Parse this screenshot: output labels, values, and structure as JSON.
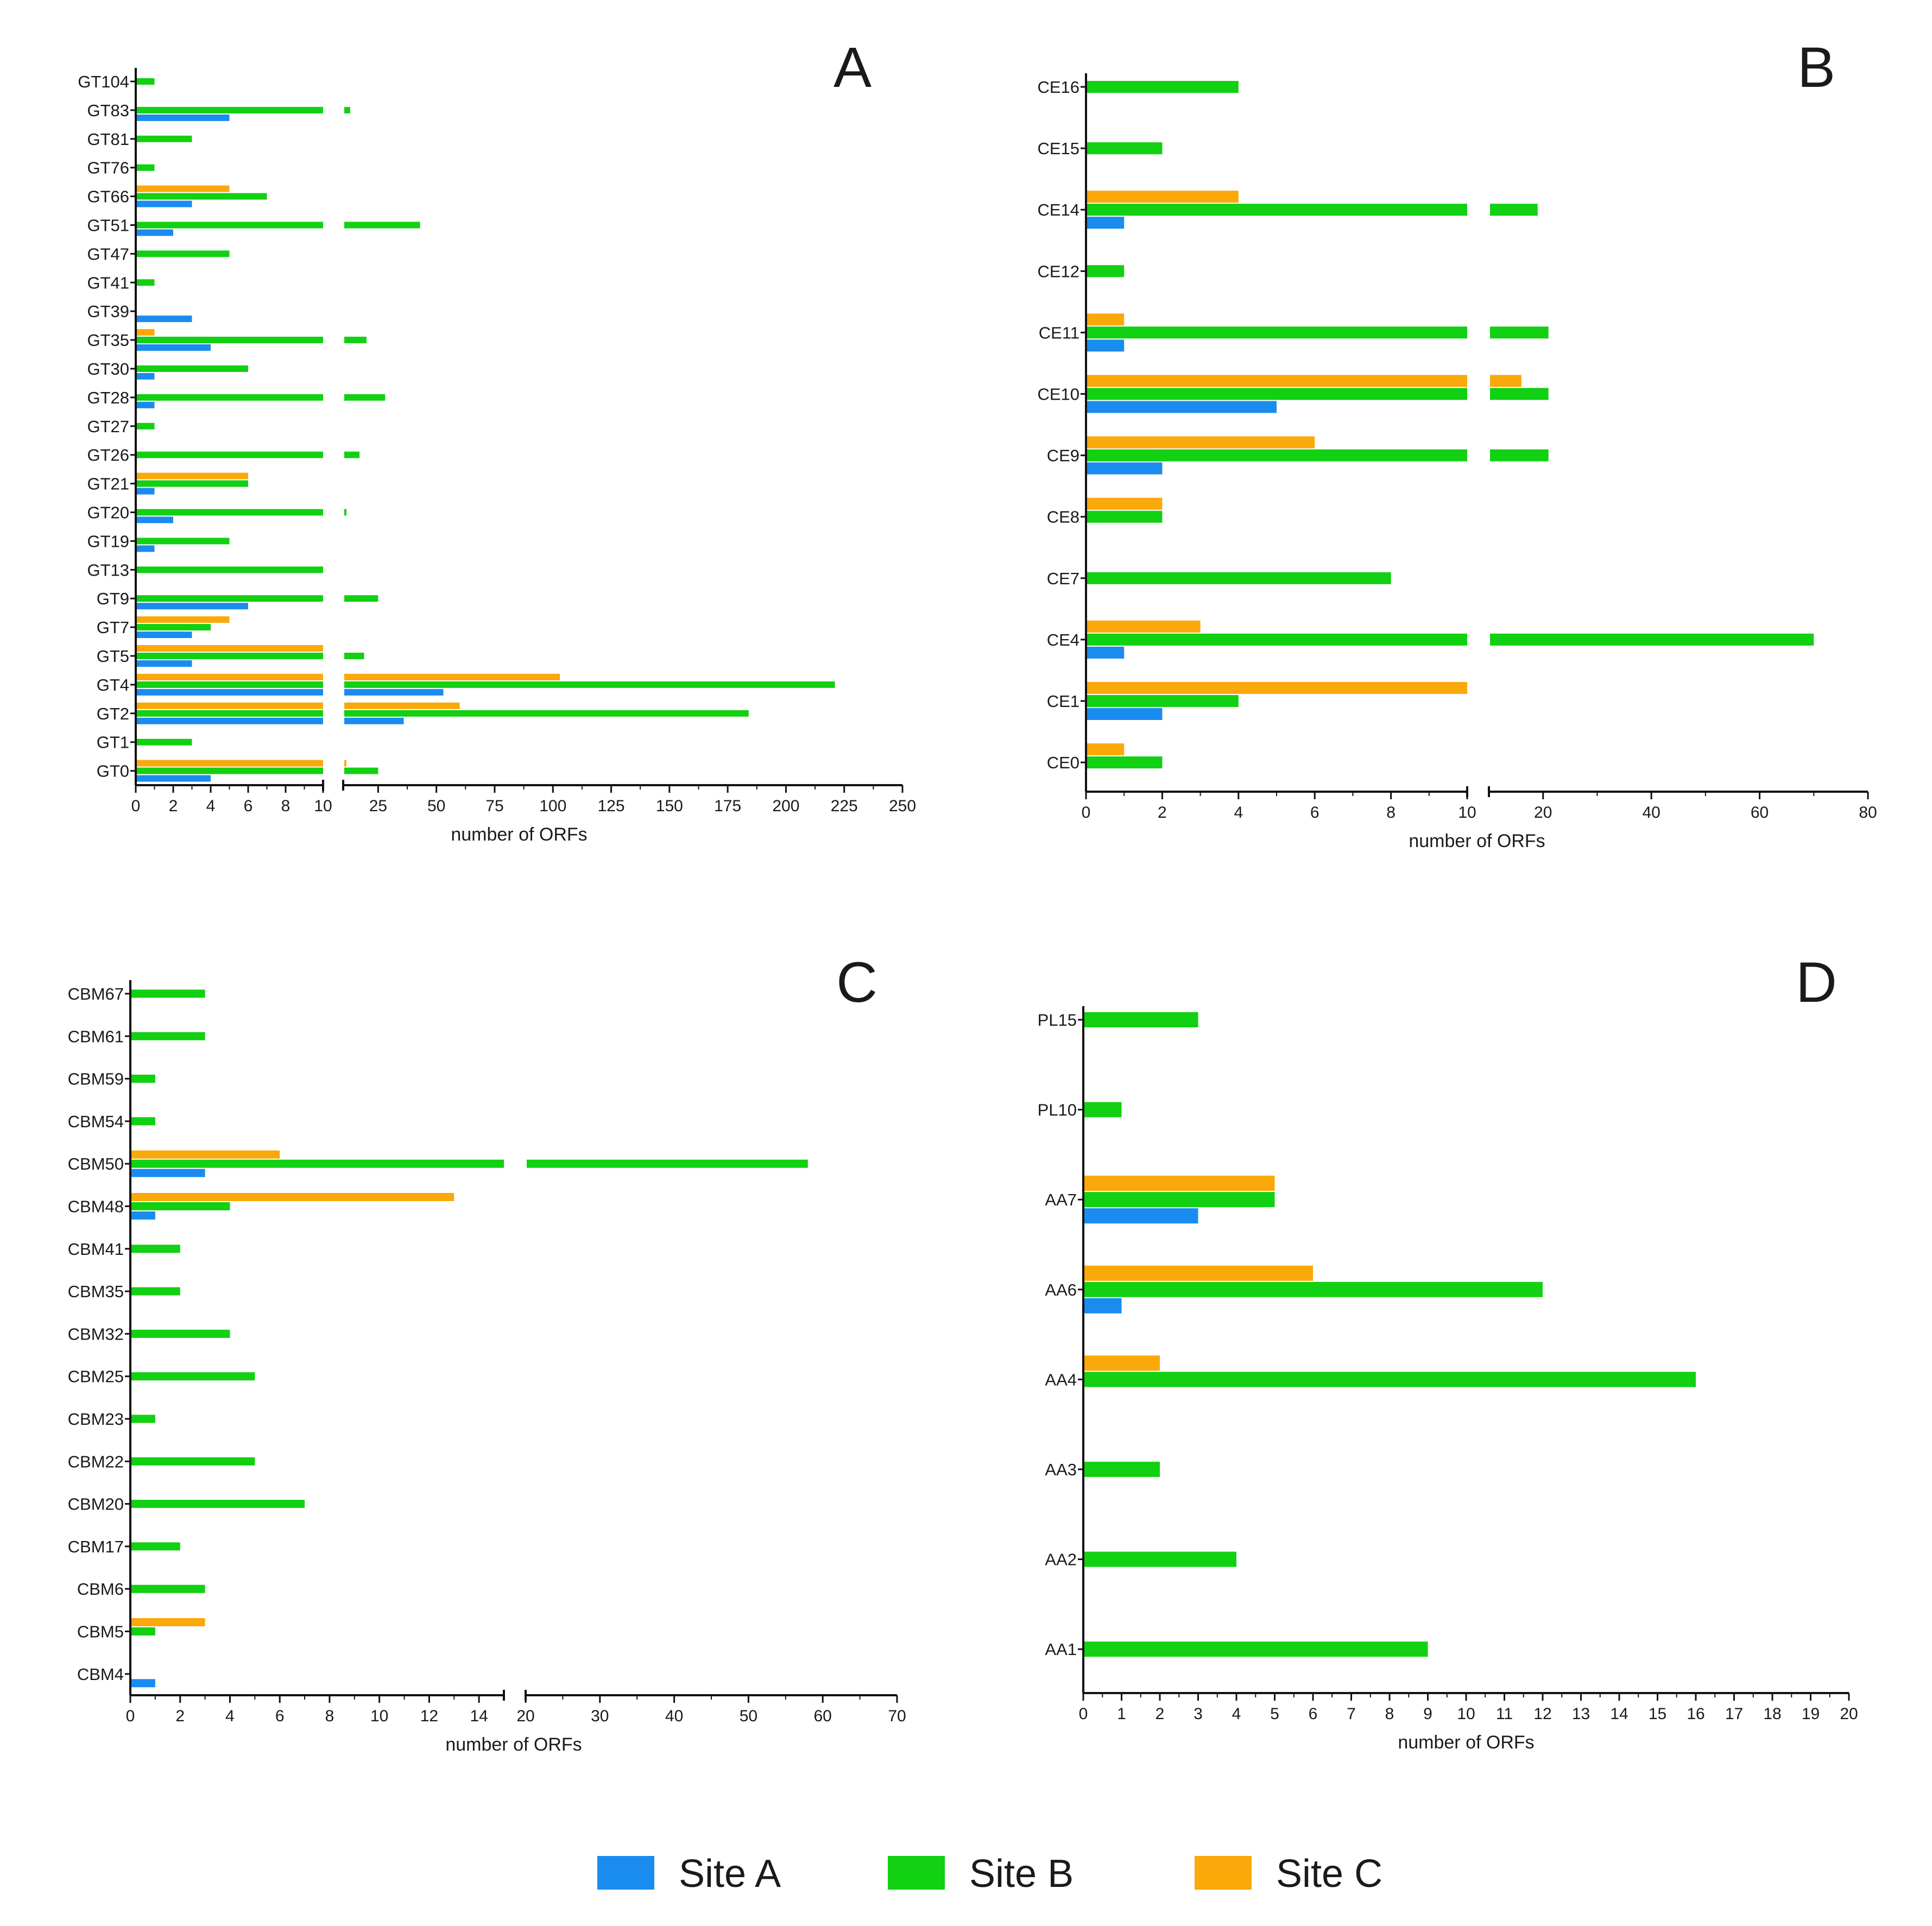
{
  "colors": {
    "site_a": "#1a8cf0",
    "site_b": "#12d012",
    "site_c": "#fba80a",
    "axis": "#111111"
  },
  "legend": [
    {
      "key": "a",
      "label": "Site A",
      "color": "#1a8cf0"
    },
    {
      "key": "b",
      "label": "Site B",
      "color": "#12d012"
    },
    {
      "key": "c",
      "label": "Site C",
      "color": "#fba80a"
    }
  ],
  "chart_data": [
    {
      "type": "bar",
      "panel": "A",
      "xlabel": "number of ORFs",
      "broken_axis": {
        "seg1": [
          0,
          10
        ],
        "seg2": [
          10,
          250
        ]
      },
      "ticks": {
        "seg1": [
          0,
          2,
          4,
          6,
          8,
          10
        ],
        "seg2": [
          25,
          50,
          75,
          100,
          125,
          150,
          175,
          200,
          225,
          250
        ]
      },
      "categories": [
        "GT104",
        "GT83",
        "GT81",
        "GT76",
        "GT66",
        "GT51",
        "GT47",
        "GT41",
        "GT39",
        "GT35",
        "GT30",
        "GT28",
        "GT27",
        "GT26",
        "GT21",
        "GT20",
        "GT19",
        "GT13",
        "GT9",
        "GT7",
        "GT5",
        "GT4",
        "GT2",
        "GT1",
        "GT0"
      ],
      "series": [
        {
          "name": "Site A",
          "key": "a",
          "values": [
            0,
            5,
            0,
            0,
            3,
            2,
            0,
            0,
            3,
            4,
            1,
            1,
            0,
            0,
            1,
            2,
            1,
            0,
            6,
            3,
            3,
            53,
            36,
            0,
            4
          ]
        },
        {
          "name": "Site B",
          "key": "b",
          "values": [
            1,
            13,
            3,
            1,
            7,
            43,
            5,
            1,
            0,
            20,
            6,
            28,
            1,
            17,
            6,
            11,
            5,
            10,
            25,
            4,
            19,
            221,
            184,
            3,
            25
          ]
        },
        {
          "name": "Site C",
          "key": "c",
          "values": [
            0,
            0,
            0,
            0,
            5,
            0,
            0,
            0,
            0,
            1,
            0,
            0,
            0,
            0,
            6,
            0,
            0,
            0,
            0,
            5,
            10,
            103,
            60,
            0,
            11
          ]
        }
      ]
    },
    {
      "type": "bar",
      "panel": "B",
      "xlabel": "number of ORFs",
      "broken_axis": {
        "seg1": [
          0,
          10
        ],
        "seg2": [
          10,
          80
        ]
      },
      "ticks": {
        "seg1": [
          0,
          2,
          4,
          6,
          8,
          10
        ],
        "seg2": [
          20,
          40,
          60,
          80
        ]
      },
      "categories": [
        "CE16",
        "CE15",
        "CE14",
        "CE12",
        "CE11",
        "CE10",
        "CE9",
        "CE8",
        "CE7",
        "CE4",
        "CE1",
        "CE0"
      ],
      "series": [
        {
          "name": "Site A",
          "key": "a",
          "values": [
            0,
            0,
            1,
            0,
            1,
            5,
            2,
            0,
            0,
            1,
            2,
            0
          ]
        },
        {
          "name": "Site B",
          "key": "b",
          "values": [
            4,
            2,
            19,
            1,
            21,
            21,
            21,
            2,
            8,
            70,
            4,
            2
          ]
        },
        {
          "name": "Site C",
          "key": "c",
          "values": [
            0,
            0,
            4,
            0,
            1,
            16,
            6,
            2,
            0,
            3,
            10,
            1
          ]
        }
      ]
    },
    {
      "type": "bar",
      "panel": "C",
      "xlabel": "number of ORFs",
      "broken_axis": {
        "seg1": [
          0,
          15
        ],
        "seg2": [
          20,
          70
        ]
      },
      "ticks": {
        "seg1": [
          0,
          2,
          4,
          6,
          8,
          10,
          12,
          14
        ],
        "seg2": [
          20,
          30,
          40,
          50,
          60,
          70
        ]
      },
      "categories": [
        "CBM67",
        "CBM61",
        "CBM59",
        "CBM54",
        "CBM50",
        "CBM48",
        "CBM41",
        "CBM35",
        "CBM32",
        "CBM25",
        "CBM23",
        "CBM22",
        "CBM20",
        "CBM17",
        "CBM6",
        "CBM5",
        "CBM4"
      ],
      "series": [
        {
          "name": "Site A",
          "key": "a",
          "values": [
            0,
            0,
            0,
            0,
            3,
            1,
            0,
            0,
            0,
            0,
            0,
            0,
            0,
            0,
            0,
            0,
            1
          ]
        },
        {
          "name": "Site B",
          "key": "b",
          "values": [
            3,
            3,
            1,
            1,
            58,
            4,
            2,
            2,
            4,
            5,
            1,
            5,
            7,
            2,
            3,
            1,
            0
          ]
        },
        {
          "name": "Site C",
          "key": "c",
          "values": [
            0,
            0,
            0,
            0,
            6,
            13,
            0,
            0,
            0,
            0,
            0,
            0,
            0,
            0,
            0,
            3,
            0
          ]
        }
      ]
    },
    {
      "type": "bar",
      "panel": "D",
      "xlabel": "number of ORFs",
      "xlim": [
        0,
        20
      ],
      "ticks": [
        0,
        1,
        2,
        3,
        4,
        5,
        6,
        7,
        8,
        9,
        10,
        11,
        12,
        13,
        14,
        15,
        16,
        17,
        18,
        19,
        20
      ],
      "categories": [
        "PL15",
        "PL10",
        "AA7",
        "AA6",
        "AA4",
        "AA3",
        "AA2",
        "AA1"
      ],
      "series": [
        {
          "name": "Site A",
          "key": "a",
          "values": [
            0,
            0,
            3,
            1,
            0,
            0,
            0,
            0
          ]
        },
        {
          "name": "Site B",
          "key": "b",
          "values": [
            3,
            1,
            5,
            12,
            16,
            2,
            4,
            9
          ]
        },
        {
          "name": "Site C",
          "key": "c",
          "values": [
            0,
            0,
            5,
            6,
            2,
            0,
            0,
            0
          ]
        }
      ]
    }
  ]
}
